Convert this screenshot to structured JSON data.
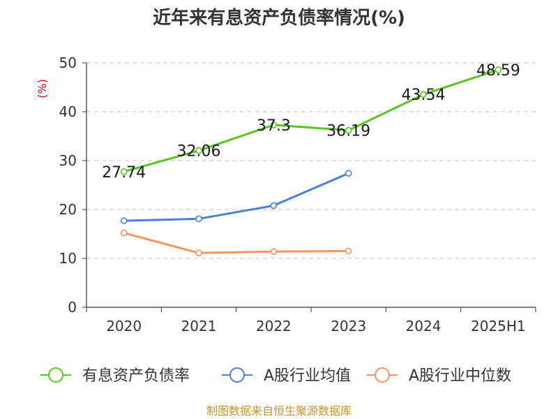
{
  "chart_data": {
    "type": "line",
    "title": "近年来有息资产负债率情况(%)",
    "ylabel": "(%)",
    "categories": [
      "2020",
      "2021",
      "2022",
      "2023",
      "2024",
      "2025H1"
    ],
    "ylim": [
      0,
      50
    ],
    "yticks": [
      0,
      10,
      20,
      30,
      40,
      50
    ],
    "grid": true,
    "legend_position": "bottom",
    "series": [
      {
        "name": "有息资产负债率",
        "color": "#5cc41f",
        "values": [
          27.74,
          32.06,
          37.3,
          36.19,
          43.54,
          48.59
        ],
        "labels": [
          "27.74",
          "32.06",
          "37.3",
          "36.19",
          "43.54",
          "48.59"
        ]
      },
      {
        "name": "A股行业均值",
        "color": "#4a7fd8",
        "values": [
          17.7,
          18.1,
          20.8,
          27.4,
          null,
          null
        ]
      },
      {
        "name": "A股行业中位数",
        "color": "#f4945f",
        "values": [
          15.2,
          11.1,
          11.4,
          11.5,
          null,
          null
        ]
      }
    ]
  },
  "source": "制图数据来自恒生聚源数据库"
}
